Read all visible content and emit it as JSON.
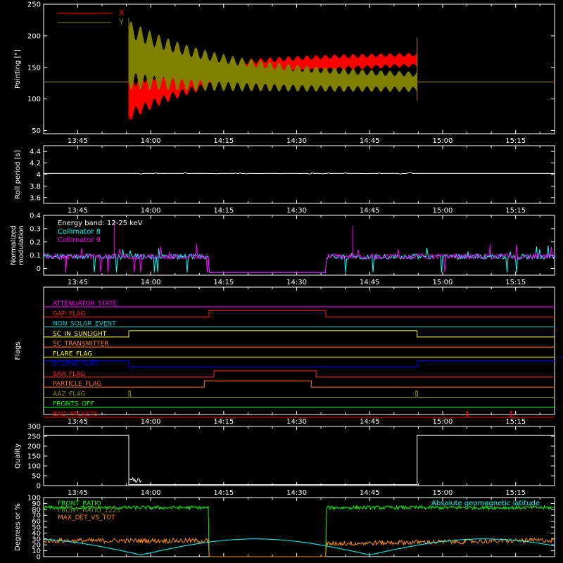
{
  "time_ticks": [
    "13:45",
    "14:00",
    "14:15",
    "14:30",
    "14:45",
    "15:00",
    "15:15"
  ],
  "colors": {
    "background": "#000000",
    "axes": "#ffffff",
    "x_series": "#ff0000",
    "y_series": "#7f7f00",
    "collimator8": "#00ffff",
    "collimator9": "#ff00ff",
    "front_ratio": "#00ff00",
    "max_det": "#ff8c00",
    "geomag": "#00ffff"
  },
  "chart_data": [
    {
      "id": "pointing",
      "type": "line",
      "ylabel": "Pointing [\"]",
      "ylim": [
        45,
        250
      ],
      "yticks": [
        50,
        100,
        150,
        200,
        250
      ],
      "legend": [
        "X",
        "Y"
      ],
      "legend_placement": "top-left",
      "series": [
        {
          "name": "X",
          "baseline": 127,
          "oscillation_start": "13:55:30",
          "oscillation_end": "14:54:45",
          "center_start": 100,
          "center_end": 165,
          "amplitude_start": 35,
          "amplitude_end": 10
        },
        {
          "name": "Y",
          "baseline": 127,
          "oscillation_start": "13:55:30",
          "oscillation_end": "14:54:45",
          "center_start": 170,
          "center_end": 125,
          "amplitude_start": 55,
          "amplitude_end": 14
        }
      ]
    },
    {
      "id": "roll_period",
      "type": "line",
      "ylabel": "Roll period [s]",
      "ylim": [
        3.5,
        4.5
      ],
      "yticks": [
        3.6,
        3.8,
        4.0,
        4.2,
        4.4
      ],
      "series": [
        {
          "name": "",
          "value": 4.02
        }
      ]
    },
    {
      "id": "modulation",
      "type": "line",
      "ylabel": "Normalized modulation",
      "ylim": [
        -0.05,
        0.4
      ],
      "yticks": [
        0.0,
        0.1,
        0.2,
        0.3,
        0.4
      ],
      "annotation": "Energy band: 12-25 keV",
      "gap": [
        "14:12",
        "14:36"
      ],
      "series": [
        {
          "name": "Collimator 8",
          "mean": 0.09
        },
        {
          "name": "Collimator 9",
          "mean": 0.09
        }
      ]
    },
    {
      "id": "flags",
      "type": "line",
      "ylabel": "Flags",
      "flags": [
        {
          "name": "ATTENUATOR_STATE",
          "color": "#ff00ff",
          "high": []
        },
        {
          "name": "GAP_FLAG",
          "color": "#ff2000",
          "high": [
            [
              "14:12",
              "14:36"
            ]
          ]
        },
        {
          "name": "NON_SOLAR_EVENT",
          "color": "#00d0d0",
          "high": []
        },
        {
          "name": "SC_IN_SUNLIGHT",
          "color": "#ffff40",
          "high": [
            [
              "13:55:30",
              "14:54:45"
            ]
          ]
        },
        {
          "name": "SC_TRANSMITTER",
          "color": "#ff8040",
          "high": []
        },
        {
          "name": "FLARE_FLAG",
          "color": "#ffff00",
          "high": []
        },
        {
          "name": "ECLIPSE_FLAG",
          "color": "#0000ff",
          "high": [
            [
              "13:42",
              "13:55:30"
            ],
            [
              "14:54:45",
              "15:20"
            ]
          ]
        },
        {
          "name": "SAA_FLAG",
          "color": "#ff3020",
          "high": [
            [
              "14:13",
              "14:34"
            ]
          ]
        },
        {
          "name": "PARTICLE_FLAG",
          "color": "#ff7020",
          "high": [
            [
              "14:11",
              "14:33"
            ]
          ]
        },
        {
          "name": "AAZ_FLAG",
          "color": "#909000",
          "high": [
            [
              "13:55:30",
              "13:55:50"
            ],
            [
              "14:54:30",
              "14:54:50"
            ]
          ]
        },
        {
          "name": "FRONTS_OFF",
          "color": "#00ff00",
          "high": []
        },
        {
          "name": "BAD_PACKETS",
          "color": "#ff0000",
          "high": [
            [
              "15:05",
              "15:05:10"
            ],
            [
              "15:14",
              "15:14:10"
            ]
          ]
        }
      ]
    },
    {
      "id": "quality",
      "type": "line",
      "ylabel": "Quality",
      "ylim": [
        0,
        300
      ],
      "yticks": [
        0,
        50,
        100,
        150,
        200,
        250,
        300
      ],
      "series": [
        {
          "name": "",
          "steps": [
            [
              "13:42",
              256
            ],
            [
              "13:55:30",
              5
            ],
            [
              "14:54:45",
              256
            ]
          ]
        }
      ]
    },
    {
      "id": "degrees",
      "type": "line",
      "ylabel": "Degrees or %",
      "ylim": [
        0,
        100
      ],
      "yticks": [
        0,
        10,
        20,
        30,
        40,
        50,
        60,
        70,
        80,
        90,
        100
      ],
      "legend": [
        "FRONT_RATIO",
        "FRONT_RATIO_1225",
        "MAX_DET_VS_TOT"
      ],
      "annotation": "Absolute geomagnetic latitude",
      "gap": [
        "14:12",
        "14:36"
      ],
      "series": [
        {
          "name": "FRONT_RATIO",
          "mean": 83
        },
        {
          "name": "MAX_DET_VS_TOT",
          "mean": 27
        },
        {
          "name": "Absolute geomagnetic latitude",
          "min": 3,
          "max": 30
        }
      ]
    }
  ]
}
